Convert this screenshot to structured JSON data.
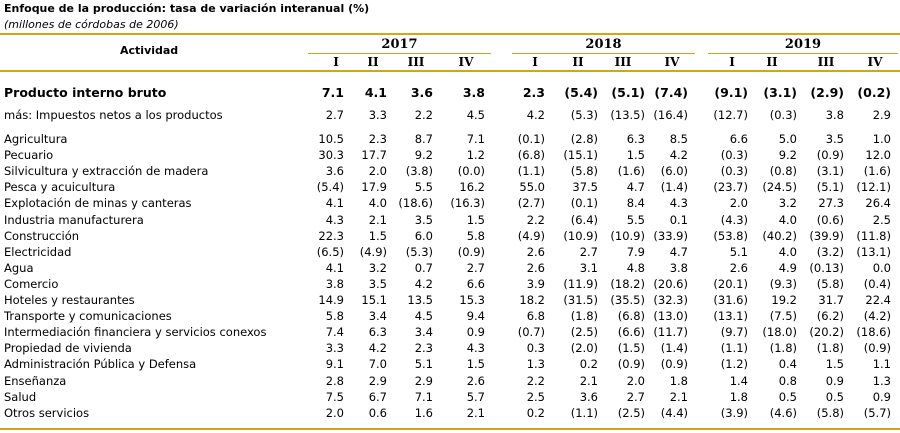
{
  "title": "Enfoque de la producción: tasa de variación interanual (%)",
  "subtitle": "(millones de córdobas de 2006)",
  "header": {
    "actividad": "Actividad",
    "years": [
      "2017",
      "2018",
      "2019"
    ],
    "quarters": [
      "I",
      "II",
      "III",
      "IV"
    ]
  },
  "rows": [
    {
      "label": "Producto interno bruto",
      "values": [
        "7.1",
        "4.1",
        "3.6",
        "3.8",
        "2.3",
        "(5.4)",
        "(5.1)",
        "(7.4)",
        "(9.1)",
        "(3.1)",
        "(2.9)",
        "(0.2)"
      ]
    },
    {
      "label": "más: Impuestos netos a los productos",
      "values": [
        "2.7",
        "3.3",
        "2.2",
        "4.5",
        "4.2",
        "(5.3)",
        "(13.5)",
        "(16.4)",
        "(12.7)",
        "(0.3)",
        "3.8",
        "2.9"
      ]
    },
    {
      "label": "Agricultura",
      "values": [
        "10.5",
        "2.3",
        "8.7",
        "7.1",
        "(0.1)",
        "(2.8)",
        "6.3",
        "8.5",
        "6.6",
        "5.0",
        "3.5",
        "1.0"
      ]
    },
    {
      "label": "Pecuario",
      "values": [
        "30.3",
        "17.7",
        "9.2",
        "1.2",
        "(6.8)",
        "(15.1)",
        "1.5",
        "4.2",
        "(0.3)",
        "9.2",
        "(0.9)",
        "12.0"
      ]
    },
    {
      "label": "Silvicultura y extracción de madera",
      "values": [
        "3.6",
        "2.0",
        "(3.8)",
        "(0.0)",
        "(1.1)",
        "(5.8)",
        "(1.6)",
        "(6.0)",
        "(0.3)",
        "(0.8)",
        "(3.1)",
        "(1.6)"
      ]
    },
    {
      "label": "Pesca y acuicultura",
      "values": [
        "(5.4)",
        "17.9",
        "5.5",
        "16.2",
        "55.0",
        "37.5",
        "4.7",
        "(1.4)",
        "(23.7)",
        "(24.5)",
        "(5.1)",
        "(12.1)"
      ]
    },
    {
      "label": "Explotación de minas y canteras",
      "values": [
        "4.1",
        "4.0",
        "(18.6)",
        "(16.3)",
        "(2.7)",
        "(0.1)",
        "8.4",
        "4.3",
        "2.0",
        "3.2",
        "27.3",
        "26.4"
      ]
    },
    {
      "label": "Industria manufacturera",
      "values": [
        "4.3",
        "2.1",
        "3.5",
        "1.5",
        "2.2",
        "(6.4)",
        "5.5",
        "0.1",
        "(4.3)",
        "4.0",
        "(0.6)",
        "2.5"
      ]
    },
    {
      "label": "Construcción",
      "values": [
        "22.3",
        "1.5",
        "6.0",
        "5.8",
        "(4.9)",
        "(10.9)",
        "(10.9)",
        "(33.9)",
        "(53.8)",
        "(40.2)",
        "(39.9)",
        "(11.8)"
      ]
    },
    {
      "label": "Electricidad",
      "values": [
        "(6.5)",
        "(4.9)",
        "(5.3)",
        "(0.9)",
        "2.6",
        "2.7",
        "7.9",
        "4.7",
        "5.1",
        "4.0",
        "(3.2)",
        "(13.1)"
      ]
    },
    {
      "label": "Agua",
      "values": [
        "4.1",
        "3.2",
        "0.7",
        "2.7",
        "2.6",
        "3.1",
        "4.8",
        "3.8",
        "2.6",
        "4.9",
        "(0.13)",
        "0.0"
      ]
    },
    {
      "label": "Comercio",
      "values": [
        "3.8",
        "3.5",
        "4.2",
        "6.6",
        "3.9",
        "(11.9)",
        "(18.2)",
        "(20.6)",
        "(20.1)",
        "(9.3)",
        "(5.8)",
        "(0.4)"
      ]
    },
    {
      "label": "Hoteles y restaurantes",
      "values": [
        "14.9",
        "15.1",
        "13.5",
        "15.3",
        "18.2",
        "(31.5)",
        "(35.5)",
        "(32.3)",
        "(31.6)",
        "19.2",
        "31.7",
        "22.4"
      ]
    },
    {
      "label": "Transporte y comunicaciones",
      "values": [
        "5.8",
        "3.4",
        "4.5",
        "9.4",
        "6.8",
        "(1.8)",
        "(6.8)",
        "(13.0)",
        "(13.1)",
        "(7.5)",
        "(6.2)",
        "(4.2)"
      ]
    },
    {
      "label": "Intermediación financiera y servicios conexos",
      "values": [
        "7.4",
        "6.3",
        "3.4",
        "0.9",
        "(0.7)",
        "(2.5)",
        "(6.6)",
        "(11.7)",
        "(9.7)",
        "(18.0)",
        "(20.2)",
        "(18.6)"
      ]
    },
    {
      "label": "Propiedad de vivienda",
      "values": [
        "3.3",
        "4.2",
        "2.3",
        "4.3",
        "0.3",
        "(2.0)",
        "(1.5)",
        "(1.4)",
        "(1.1)",
        "(1.8)",
        "(1.8)",
        "(0.9)"
      ]
    },
    {
      "label": "Administración Pública y Defensa",
      "values": [
        "9.1",
        "7.0",
        "5.1",
        "1.5",
        "1.3",
        "0.2",
        "(0.9)",
        "(0.9)",
        "(1.2)",
        "0.4",
        "1.5",
        "1.1"
      ]
    },
    {
      "label": "Enseñanza",
      "values": [
        "2.8",
        "2.9",
        "2.9",
        "2.6",
        "2.2",
        "2.1",
        "2.0",
        "1.8",
        "1.4",
        "0.8",
        "0.9",
        "1.3"
      ]
    },
    {
      "label": "Salud",
      "values": [
        "7.5",
        "6.7",
        "7.1",
        "5.7",
        "2.5",
        "3.6",
        "2.7",
        "2.1",
        "1.8",
        "0.5",
        "0.5",
        "0.9"
      ]
    },
    {
      "label": "Otros servicios",
      "values": [
        "2.0",
        "0.6",
        "1.6",
        "2.1",
        "0.2",
        "(1.1)",
        "(2.5)",
        "(4.4)",
        "(3.9)",
        "(4.6)",
        "(5.8)",
        "(5.7)"
      ]
    }
  ]
}
